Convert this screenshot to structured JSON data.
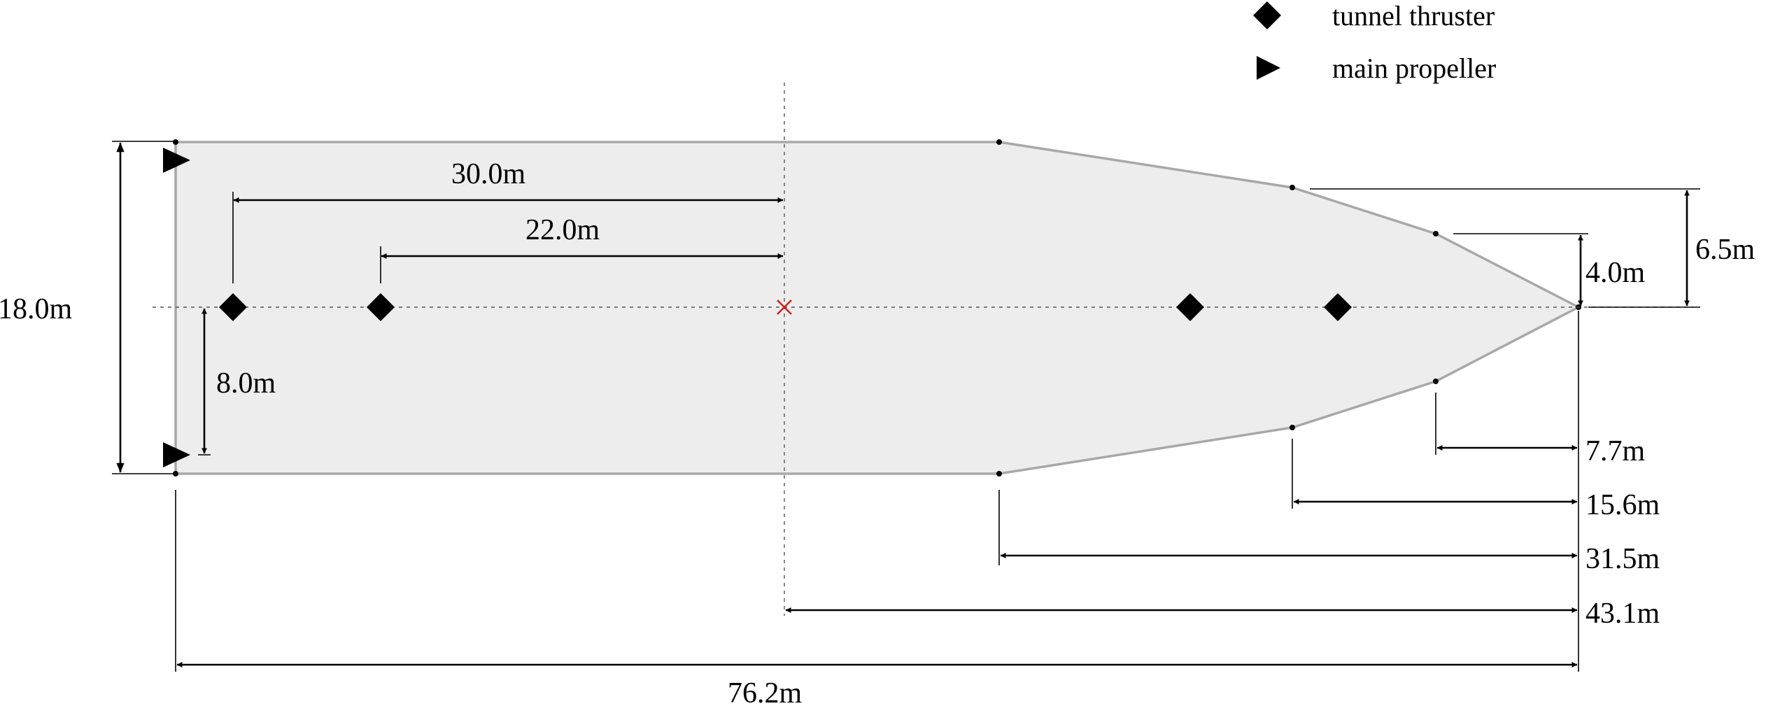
{
  "legend": {
    "tunnel_thruster": "tunnel thruster",
    "main_propeller": "main propeller"
  },
  "dimensions": {
    "overall_width": "18.0m",
    "aft_thruster_distance": "30.0m",
    "fwd_thruster_distance": "22.0m",
    "propeller_offset": "8.0m",
    "bow_step1_halfwidth": "6.5m",
    "bow_step2_halfwidth": "4.0m",
    "bow_segment1_length": "7.7m",
    "bow_segment2_length": "15.6m",
    "bow_segment3_length": "31.5m",
    "cg_to_bow": "43.1m",
    "overall_length": "76.2m"
  },
  "colors": {
    "hull_fill": "#ededed",
    "hull_outline": "#a8a8a8",
    "markers": "#000000",
    "reference_point": "#cc2222"
  }
}
